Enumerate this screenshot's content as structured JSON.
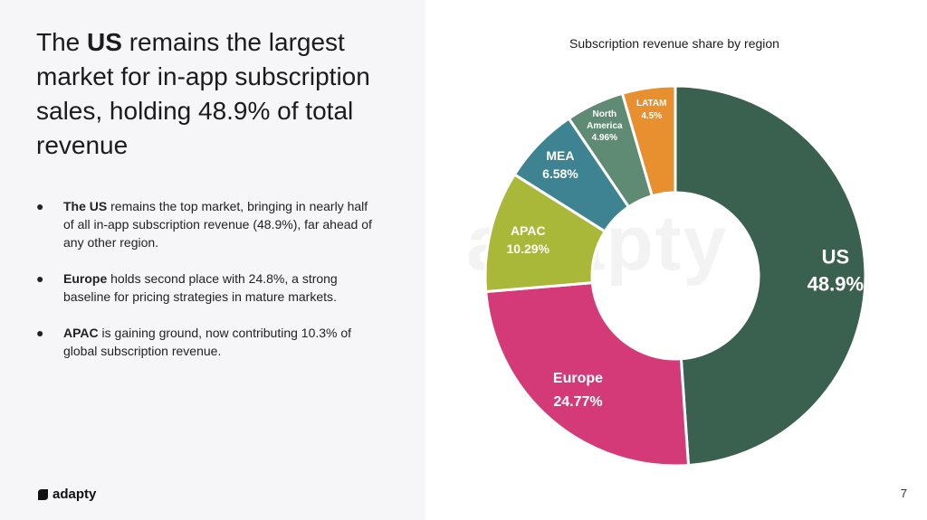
{
  "headline": {
    "part1": "The ",
    "bold": "US",
    "part2": " remains the largest market for in-app subscription sales, holding 48.9% of total revenue"
  },
  "bullets": [
    {
      "bold": "The US",
      "text": " remains the top market, bringing in nearly half of all in-app subscription revenue (48.9%), far ahead of any other region."
    },
    {
      "bold": "Europe",
      "text": " holds second place with 24.8%, a strong baseline for pricing strategies in mature markets."
    },
    {
      "bold": "APAC",
      "text": " is gaining ground, now contributing 10.3% of global subscription revenue."
    }
  ],
  "bullet_symbol": "●",
  "logo": {
    "text": "adapty"
  },
  "watermark": "adapty",
  "page_number": "7",
  "chart_data": {
    "type": "pie",
    "title": "Subscription revenue share by region",
    "categories": [
      "US",
      "Europe",
      "APAC",
      "MEA",
      "North America",
      "LATAM"
    ],
    "values": [
      48.9,
      24.77,
      10.29,
      6.58,
      4.96,
      4.5
    ],
    "labels": [
      {
        "lines": [
          "US",
          "48.9%"
        ]
      },
      {
        "lines": [
          "Europe",
          "24.77%"
        ]
      },
      {
        "lines": [
          "APAC",
          "10.29%"
        ]
      },
      {
        "lines": [
          "MEA",
          "6.58%"
        ]
      },
      {
        "lines": [
          "North",
          "America",
          "4.96%"
        ]
      },
      {
        "lines": [
          "LATAM",
          "4.5%"
        ]
      }
    ],
    "colors": [
      "#3a6150",
      "#d43a78",
      "#aab83a",
      "#3d8391",
      "#5f8a74",
      "#e88f30"
    ],
    "donut_hole": true
  }
}
